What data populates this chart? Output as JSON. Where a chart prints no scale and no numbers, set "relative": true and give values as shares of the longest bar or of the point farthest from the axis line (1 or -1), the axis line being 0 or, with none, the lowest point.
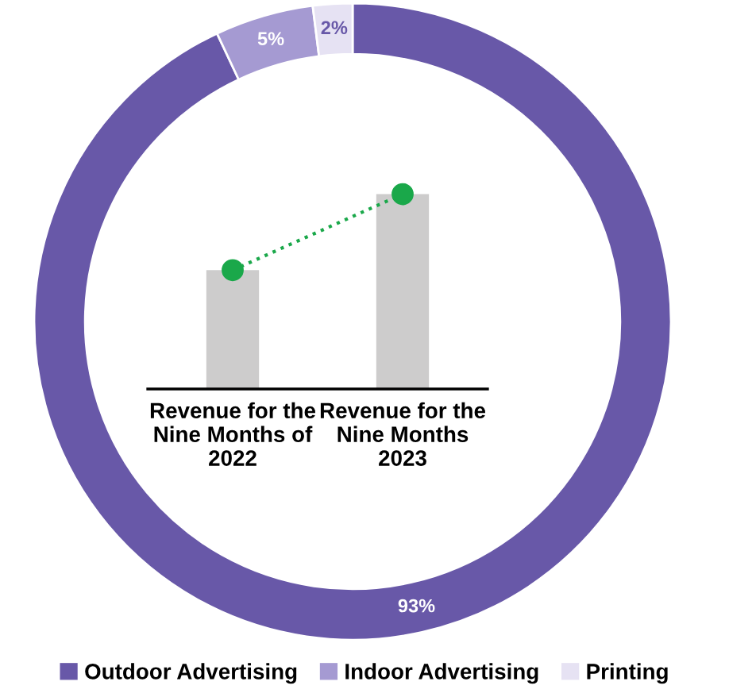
{
  "chart_data": [
    {
      "type": "donut",
      "categories": [
        "Outdoor Advertising",
        "Indoor Advertising",
        "Printing"
      ],
      "values": [
        93,
        5,
        2
      ],
      "colors": [
        "#6858a8",
        "#a59ad2",
        "#e6e2f3"
      ],
      "value_labels": [
        "93%",
        "5%",
        "2%"
      ],
      "legend": "bottom"
    },
    {
      "type": "bar",
      "relative": true,
      "categories": [
        "Revenue for the\nNine Months of\n2022",
        "Revenue for the\nNine Months\n2023"
      ],
      "series": [
        {
          "type": "bar",
          "color": "#cdcccc",
          "values": [
            0.61,
            1
          ]
        },
        {
          "type": "line",
          "color": "#1aa84a",
          "values": [
            0.61,
            1
          ],
          "marker": "circle",
          "line_style": "dotted"
        }
      ]
    }
  ]
}
